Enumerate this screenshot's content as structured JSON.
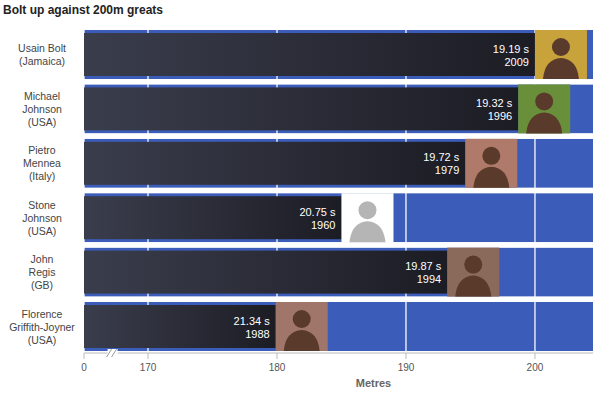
{
  "chart_data": {
    "type": "bar",
    "orientation": "horizontal",
    "title": "Bolt up against 200m greats",
    "categories": [
      "Usain Bolt\n(Jamaica)",
      "Michael\nJohnson\n(USA)",
      "Pietro\nMennea\n(Italy)",
      "Stone\nJohnson\n(USA)",
      "John\nRegis\n(GB)",
      "Florence\nGriffith-Joyner\n(USA)"
    ],
    "values": [
      200,
      198.7,
      194.6,
      185.0,
      193.2,
      179.9
    ],
    "time_labels": [
      "19.19 s",
      "19.32 s",
      "19.72 s",
      "20.75 s",
      "19.87 s",
      "21.34 s"
    ],
    "years": [
      2009,
      1996,
      1979,
      1960,
      1994,
      1988
    ],
    "color": "#1c1c24",
    "xlabel": "Metres",
    "xlim": [
      0,
      204.5
    ],
    "xticks": [
      0,
      170,
      180,
      190,
      200
    ],
    "grid": true,
    "data_labels": true
  }
}
